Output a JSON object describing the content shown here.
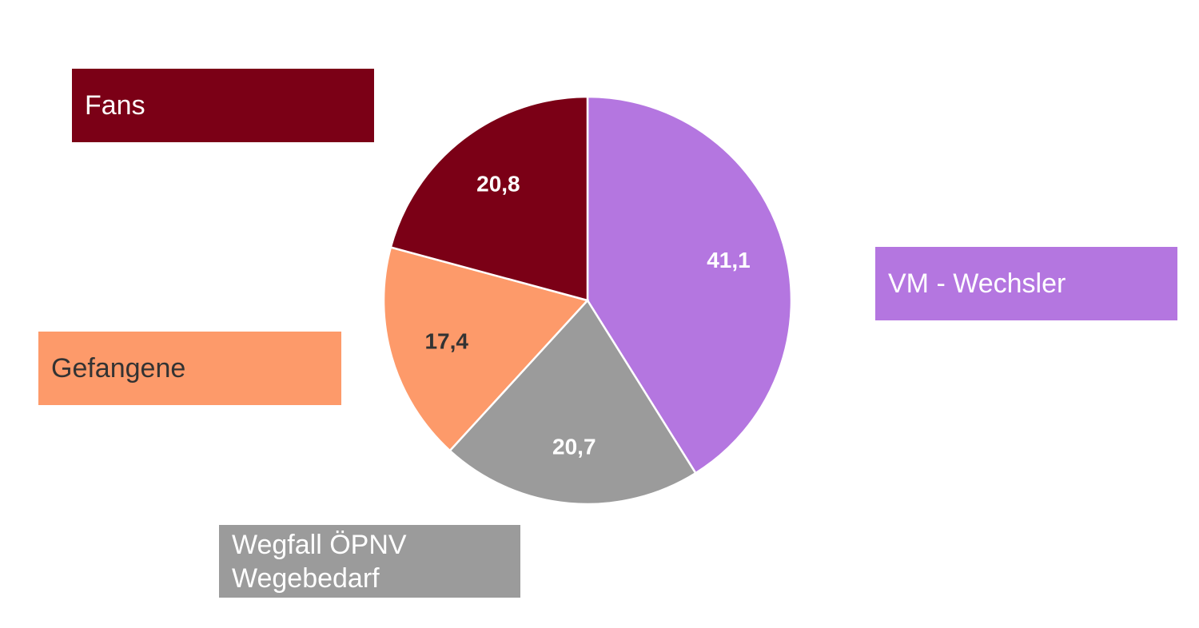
{
  "chart_data": {
    "type": "pie",
    "slices": [
      {
        "label": "VM - Wechsler",
        "value": 41.1,
        "value_label": "41,1",
        "color": "#b476e0",
        "label_color": "#ffffff",
        "text_color": "#ffffff"
      },
      {
        "label": "Wegfall ÖPNV\nWegebedarf",
        "value": 20.7,
        "value_label": "20,7",
        "color": "#9b9b9b",
        "label_color": "#ffffff",
        "text_color": "#ffffff"
      },
      {
        "label": "Gefangene",
        "value": 17.4,
        "value_label": "17,4",
        "color": "#fd9a6a",
        "label_color": "#333333",
        "text_color": "#333333"
      },
      {
        "label": "Fans",
        "value": 20.8,
        "value_label": "20,8",
        "color": "#7b0016",
        "label_color": "#ffffff",
        "text_color": "#ffffff"
      }
    ],
    "start_angle_deg": 0,
    "direction": "clockwise"
  }
}
